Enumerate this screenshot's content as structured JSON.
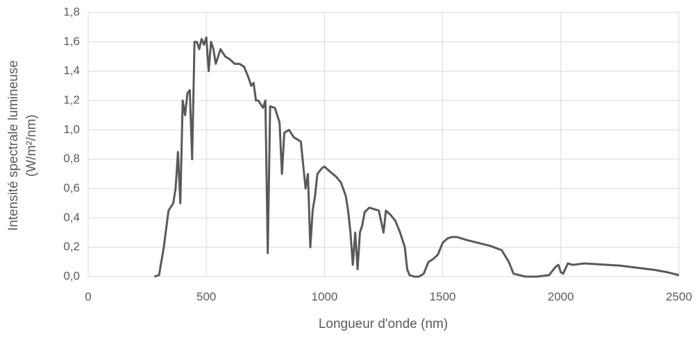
{
  "chart_data": {
    "type": "line",
    "xlabel": "Longueur d'onde (nm)",
    "ylabel": [
      "Intensité spectrale lumineuse",
      "(W/m²/nm)"
    ],
    "grid": true,
    "xlim": [
      0,
      2500
    ],
    "xticks": [
      0,
      500,
      1000,
      1500,
      2000,
      2500
    ],
    "ylim": [
      0,
      1.8
    ],
    "yticks": [
      {
        "value": 0,
        "label": "0,0"
      },
      {
        "value": 0.2,
        "label": "0,2"
      },
      {
        "value": 0.4,
        "label": "0,4"
      },
      {
        "value": 0.6,
        "label": "0,6"
      },
      {
        "value": 0.8,
        "label": "0,8"
      },
      {
        "value": 1.0,
        "label": "1,0"
      },
      {
        "value": 1.2,
        "label": "1,2"
      },
      {
        "value": 1.4,
        "label": "1,4"
      },
      {
        "value": 1.6,
        "label": "1,6"
      },
      {
        "value": 1.8,
        "label": "1,8"
      }
    ],
    "x": [
      280,
      300,
      320,
      340,
      360,
      370,
      380,
      390,
      400,
      410,
      420,
      430,
      440,
      450,
      460,
      470,
      480,
      490,
      500,
      510,
      520,
      530,
      540,
      560,
      580,
      600,
      620,
      640,
      660,
      680,
      690,
      700,
      710,
      720,
      740,
      750,
      760,
      770,
      790,
      810,
      820,
      830,
      850,
      870,
      900,
      920,
      930,
      940,
      950,
      960,
      970,
      990,
      1000,
      1020,
      1050,
      1070,
      1090,
      1100,
      1110,
      1120,
      1130,
      1140,
      1150,
      1160,
      1170,
      1190,
      1210,
      1230,
      1250,
      1260,
      1280,
      1300,
      1320,
      1340,
      1350,
      1360,
      1380,
      1400,
      1420,
      1440,
      1460,
      1480,
      1500,
      1520,
      1540,
      1560,
      1580,
      1600,
      1650,
      1700,
      1750,
      1780,
      1800,
      1850,
      1900,
      1950,
      1980,
      1990,
      2000,
      2010,
      2030,
      2050,
      2100,
      2150,
      2200,
      2250,
      2300,
      2350,
      2400,
      2450,
      2500
    ],
    "series": [
      {
        "color": "#595959",
        "values": [
          0,
          0.01,
          0.2,
          0.45,
          0.5,
          0.6,
          0.85,
          0.5,
          1.2,
          1.1,
          1.25,
          1.27,
          0.8,
          1.6,
          1.6,
          1.55,
          1.62,
          1.58,
          1.63,
          1.4,
          1.6,
          1.55,
          1.45,
          1.55,
          1.5,
          1.48,
          1.45,
          1.45,
          1.43,
          1.35,
          1.3,
          1.32,
          1.2,
          1.2,
          1.15,
          1.2,
          0.16,
          1.16,
          1.15,
          1.05,
          0.7,
          0.98,
          1.0,
          0.95,
          0.92,
          0.6,
          0.7,
          0.2,
          0.45,
          0.55,
          0.7,
          0.74,
          0.75,
          0.72,
          0.68,
          0.64,
          0.55,
          0.45,
          0.3,
          0.08,
          0.3,
          0.05,
          0.3,
          0.35,
          0.44,
          0.47,
          0.46,
          0.45,
          0.3,
          0.45,
          0.42,
          0.38,
          0.3,
          0.2,
          0.05,
          0.01,
          0,
          0,
          0.02,
          0.1,
          0.12,
          0.15,
          0.23,
          0.26,
          0.27,
          0.27,
          0.26,
          0.25,
          0.23,
          0.21,
          0.18,
          0.1,
          0.02,
          0,
          0,
          0.01,
          0.07,
          0.08,
          0.03,
          0.02,
          0.09,
          0.08,
          0.09,
          0.085,
          0.08,
          0.075,
          0.065,
          0.055,
          0.045,
          0.03,
          0.01
        ]
      }
    ]
  }
}
